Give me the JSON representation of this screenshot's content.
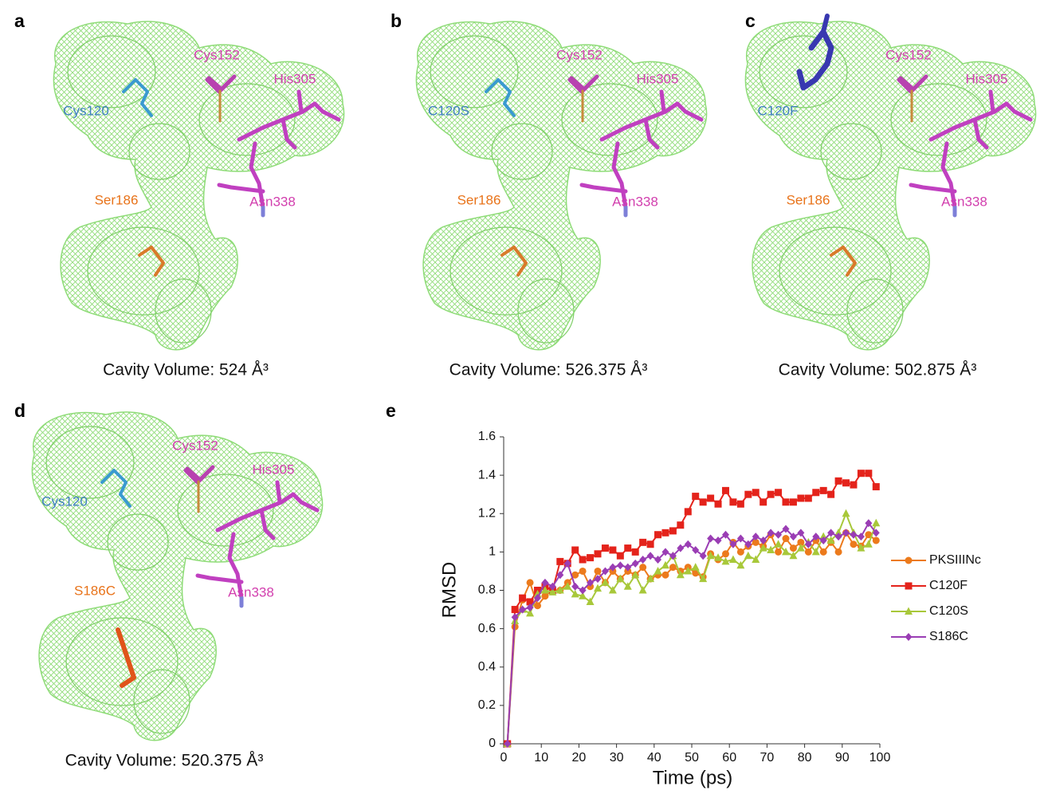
{
  "panels": [
    {
      "letter": "a",
      "residues": [
        "Cys152",
        "His305",
        "Cys120",
        "Ser186",
        "Asn338"
      ],
      "caption": "Cavity Volume: 524 Å³"
    },
    {
      "letter": "b",
      "residues": [
        "Cys152",
        "His305",
        "C120S",
        "Ser186",
        "Asn338"
      ],
      "caption": "Cavity Volume: 526.375 Å³"
    },
    {
      "letter": "c",
      "residues": [
        "Cys152",
        "His305",
        "C120F",
        "Ser186",
        "Asn338"
      ],
      "caption": "Cavity Volume: 502.875 Å³"
    },
    {
      "letter": "d",
      "residues": [
        "Cys152",
        "His305",
        "Cys120",
        "S186C",
        "Asn338"
      ],
      "caption": "Cavity Volume: 520.375 Å³"
    }
  ],
  "chart_data": {
    "type": "line",
    "panel_letter": "e",
    "xlabel": "Time (ps)",
    "ylabel": "RMSD",
    "xlim": [
      0,
      100
    ],
    "ylim": [
      0,
      1.6
    ],
    "xticks": [
      0,
      10,
      20,
      30,
      40,
      50,
      60,
      70,
      80,
      90,
      100
    ],
    "yticks": [
      0,
      0.2,
      0.4,
      0.6,
      0.8,
      1,
      1.2,
      1.4,
      1.6
    ],
    "x": [
      1,
      3,
      5,
      7,
      9,
      11,
      13,
      15,
      17,
      19,
      21,
      23,
      25,
      27,
      29,
      31,
      33,
      35,
      37,
      39,
      41,
      43,
      45,
      47,
      49,
      51,
      53,
      55,
      57,
      59,
      61,
      63,
      65,
      67,
      69,
      71,
      73,
      75,
      77,
      79,
      81,
      83,
      85,
      87,
      89,
      91,
      93,
      95,
      97,
      99
    ],
    "series": [
      {
        "name": "PKSIIINc",
        "color": "#ec7a1c",
        "marker": "circle",
        "values": [
          0,
          0.61,
          0.75,
          0.84,
          0.72,
          0.77,
          0.8,
          0.8,
          0.84,
          0.88,
          0.9,
          0.82,
          0.9,
          0.84,
          0.9,
          0.86,
          0.9,
          0.88,
          0.92,
          0.86,
          0.88,
          0.88,
          0.92,
          0.9,
          0.92,
          0.89,
          0.87,
          0.99,
          0.96,
          0.99,
          1.05,
          1.0,
          1.03,
          1.05,
          1.03,
          1.09,
          1.0,
          1.07,
          1.02,
          1.05,
          1.0,
          1.06,
          1.0,
          1.05,
          1.0,
          1.1,
          1.04,
          1.03,
          1.09,
          1.06
        ]
      },
      {
        "name": "C120F",
        "color": "#e4231b",
        "marker": "square",
        "values": [
          0,
          0.7,
          0.76,
          0.74,
          0.8,
          0.82,
          0.8,
          0.95,
          0.94,
          1.01,
          0.96,
          0.97,
          0.99,
          1.02,
          1.01,
          0.98,
          1.02,
          1.0,
          1.05,
          1.04,
          1.09,
          1.1,
          1.11,
          1.14,
          1.21,
          1.29,
          1.26,
          1.28,
          1.25,
          1.32,
          1.26,
          1.25,
          1.3,
          1.31,
          1.26,
          1.3,
          1.31,
          1.26,
          1.26,
          1.28,
          1.28,
          1.31,
          1.32,
          1.3,
          1.37,
          1.36,
          1.35,
          1.41,
          1.41,
          1.34
        ]
      },
      {
        "name": "C120S",
        "color": "#a8c83a",
        "marker": "triangle",
        "values": [
          0,
          0.64,
          0.7,
          0.68,
          0.78,
          0.8,
          0.79,
          0.8,
          0.82,
          0.78,
          0.77,
          0.74,
          0.81,
          0.84,
          0.8,
          0.86,
          0.82,
          0.88,
          0.8,
          0.86,
          0.9,
          0.93,
          0.98,
          0.88,
          0.9,
          0.92,
          0.86,
          0.98,
          0.97,
          0.95,
          0.96,
          0.93,
          0.98,
          0.96,
          1.02,
          1.01,
          1.04,
          1.0,
          0.98,
          1.02,
          1.05,
          1.0,
          1.08,
          1.06,
          1.1,
          1.2,
          1.1,
          1.02,
          1.04,
          1.15
        ]
      },
      {
        "name": "S186C",
        "color": "#9a3db4",
        "marker": "diamond",
        "values": [
          0,
          0.66,
          0.7,
          0.71,
          0.76,
          0.84,
          0.82,
          0.88,
          0.94,
          0.82,
          0.8,
          0.84,
          0.86,
          0.9,
          0.92,
          0.93,
          0.92,
          0.94,
          0.96,
          0.98,
          0.96,
          1.0,
          0.98,
          1.02,
          1.04,
          1.01,
          0.98,
          1.07,
          1.06,
          1.09,
          1.04,
          1.07,
          1.04,
          1.08,
          1.06,
          1.1,
          1.09,
          1.12,
          1.08,
          1.1,
          1.04,
          1.08,
          1.06,
          1.1,
          1.08,
          1.1,
          1.09,
          1.08,
          1.15,
          1.1
        ]
      }
    ]
  }
}
